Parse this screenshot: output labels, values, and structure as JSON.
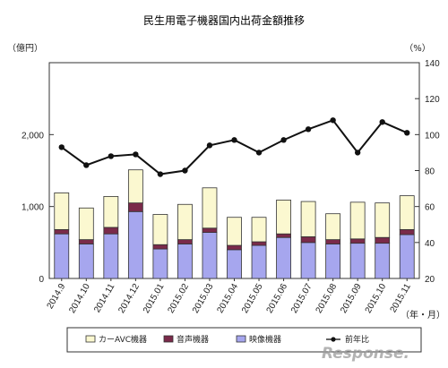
{
  "chart_data": {
    "type": "bar",
    "title": "民生用電子機器国内出荷金額推移",
    "left_unit": "（億円）",
    "right_unit": "（%）",
    "x_unit": "（年・月）",
    "categories": [
      "2014.9",
      "2014.10",
      "2014.11",
      "2014.12",
      "2015.01",
      "2015.02",
      "2015.03",
      "2015.04",
      "2015.05",
      "2015.06",
      "2015.07",
      "2015.08",
      "2015.09",
      "2015.10",
      "2015.11"
    ],
    "series": [
      {
        "name": "映像機器",
        "axis": "left",
        "color": "#a6a6ee",
        "values": [
          620,
          480,
          620,
          930,
          410,
          480,
          640,
          400,
          460,
          570,
          500,
          480,
          490,
          490,
          610
        ]
      },
      {
        "name": "音声機器",
        "axis": "left",
        "color": "#7a2a4a",
        "values": [
          60,
          60,
          90,
          120,
          60,
          60,
          60,
          60,
          50,
          50,
          80,
          60,
          60,
          80,
          70
        ]
      },
      {
        "name": "カーAVC機器",
        "axis": "left",
        "color": "#fbf8d0",
        "values": [
          510,
          440,
          430,
          460,
          420,
          490,
          560,
          390,
          340,
          470,
          490,
          360,
          510,
          480,
          470
        ]
      },
      {
        "name": "前年比",
        "axis": "right",
        "type": "line",
        "color": "#111111",
        "values": [
          93,
          83,
          88,
          89,
          78,
          80,
          94,
          97,
          90,
          97,
          103,
          108,
          90,
          107,
          101
        ]
      }
    ],
    "ylim_left": [
      0,
      3000
    ],
    "yticks_left": [
      0,
      1000,
      2000
    ],
    "ytick_labels_left": [
      "0",
      "1,000",
      "2,000"
    ],
    "ylim_right": [
      20,
      140
    ],
    "yticks_right": [
      20,
      40,
      60,
      80,
      100,
      120,
      140
    ],
    "grid": false,
    "legend_position": "bottom",
    "legend_order": [
      "カーAVC機器",
      "音声機器",
      "映像機器",
      "前年比"
    ]
  },
  "watermark": "Response."
}
